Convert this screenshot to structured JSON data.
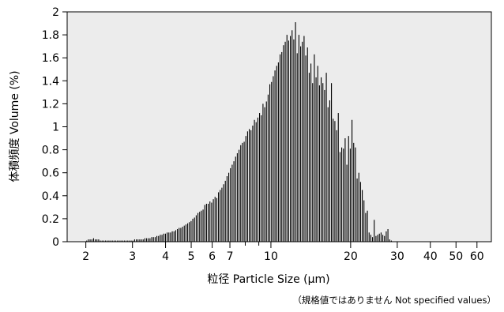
{
  "chart_data": {
    "type": "bar",
    "xscale": "log",
    "xlim": [
      1.7,
      68
    ],
    "ylim": [
      0,
      2
    ],
    "xlabel": "粒径  Particle Size (μm)",
    "ylabel": "体積頻度  Volume (%)",
    "xticks": [
      2,
      3,
      4,
      5,
      6,
      7,
      10,
      20,
      30,
      40,
      50,
      60
    ],
    "xtick_labels": [
      "2",
      "3",
      "4",
      "5",
      "6",
      "7",
      "10",
      "20",
      "30",
      "40",
      "50",
      "60"
    ],
    "yticks": [
      0,
      0.2,
      0.4,
      0.6,
      0.8,
      1,
      1.2,
      1.4,
      1.6,
      1.8,
      2
    ],
    "ytick_labels": [
      "0",
      "0.2",
      "0.4",
      "0.6",
      "0.8",
      "1",
      "1.2",
      "1.4",
      "1.6",
      "1.8",
      "2"
    ],
    "grid": false,
    "background_color": "#ececec",
    "bar_color": "#000000",
    "x_start": 2.015,
    "x_end": 28.5,
    "values": [
      0.01,
      0.02,
      0.02,
      0.02,
      0.03,
      0.02,
      0.02,
      0.02,
      0.01,
      0.01,
      0.01,
      0.01,
      0.01,
      0.01,
      0.01,
      0.01,
      0.01,
      0.01,
      0.01,
      0.01,
      0.01,
      0.01,
      0.01,
      0.01,
      0.01,
      0.01,
      0.01,
      0.01,
      0.02,
      0.02,
      0.02,
      0.02,
      0.02,
      0.02,
      0.03,
      0.03,
      0.03,
      0.03,
      0.04,
      0.04,
      0.04,
      0.05,
      0.05,
      0.06,
      0.06,
      0.07,
      0.07,
      0.08,
      0.08,
      0.08,
      0.09,
      0.09,
      0.1,
      0.11,
      0.12,
      0.12,
      0.13,
      0.14,
      0.15,
      0.16,
      0.17,
      0.18,
      0.2,
      0.21,
      0.23,
      0.25,
      0.26,
      0.27,
      0.28,
      0.32,
      0.33,
      0.33,
      0.35,
      0.34,
      0.37,
      0.39,
      0.38,
      0.43,
      0.45,
      0.47,
      0.5,
      0.53,
      0.57,
      0.6,
      0.64,
      0.67,
      0.7,
      0.74,
      0.77,
      0.8,
      0.84,
      0.86,
      0.87,
      0.92,
      0.96,
      0.98,
      0.97,
      1.01,
      1.06,
      1.04,
      1.08,
      1.12,
      1.1,
      1.2,
      1.17,
      1.22,
      1.28,
      1.37,
      1.39,
      1.44,
      1.49,
      1.53,
      1.56,
      1.63,
      1.65,
      1.71,
      1.74,
      1.8,
      1.75,
      1.79,
      1.84,
      1.76,
      1.91,
      1.64,
      1.8,
      1.7,
      1.74,
      1.79,
      1.62,
      1.69,
      1.47,
      1.55,
      1.38,
      1.63,
      1.43,
      1.53,
      1.36,
      1.43,
      1.38,
      1.32,
      1.47,
      1.17,
      1.23,
      1.38,
      1.07,
      1.05,
      0.97,
      1.12,
      0.78,
      0.82,
      0.81,
      0.9,
      0.67,
      0.92,
      0.81,
      1.06,
      0.86,
      0.82,
      0.55,
      0.6,
      0.52,
      0.45,
      0.36,
      0.25,
      0.27,
      0.08,
      0.06,
      0.04,
      0.19,
      0.05,
      0.06,
      0.07,
      0.08,
      0.06,
      0.05,
      0.09,
      0.11,
      0.02,
      0.01
    ]
  },
  "note": "（規格値ではありません  Not specified values）"
}
